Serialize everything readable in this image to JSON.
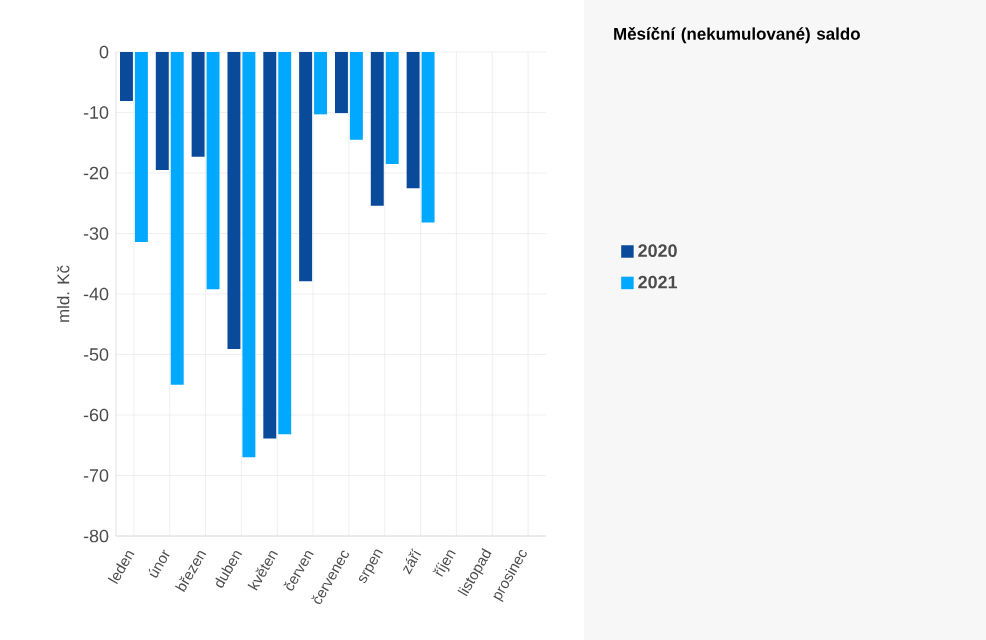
{
  "chart_data": {
    "type": "bar",
    "title": "Měsíční (nekumulované) saldo",
    "ylabel": "mld. Kč",
    "categories": [
      "leden",
      "únor",
      "březen",
      "duben",
      "květen",
      "červen",
      "červenec",
      "srpen",
      "září",
      "říjen",
      "listopad",
      "prosinec"
    ],
    "series": [
      {
        "name": "2020",
        "color": "#0a4a9a",
        "values": [
          -8.1,
          -19.5,
          -17.3,
          -49.1,
          -63.9,
          -37.9,
          -10.1,
          -25.4,
          -22.5,
          null,
          null,
          null
        ]
      },
      {
        "name": "2021",
        "color": "#00a8ff",
        "values": [
          -31.4,
          -55.0,
          -39.2,
          -67.0,
          -63.2,
          -10.3,
          -14.5,
          -18.5,
          -28.2,
          null,
          null,
          null
        ]
      }
    ],
    "ylim": [
      -80,
      0
    ],
    "yticks": [
      -80,
      -70,
      -60,
      -50,
      -40,
      -30,
      -20,
      -10,
      0
    ],
    "grid": true,
    "legend": "right"
  }
}
